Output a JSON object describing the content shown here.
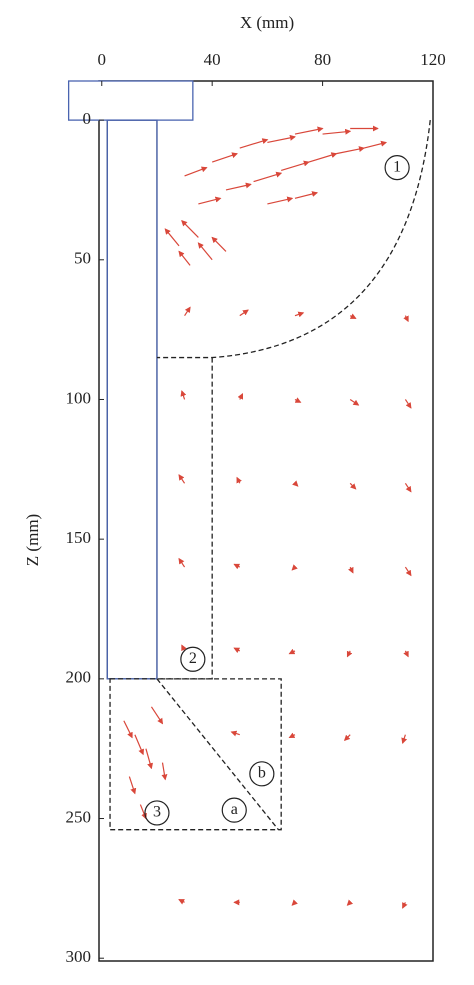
{
  "chart_data": {
    "type": "quiver",
    "xlabel": "X (mm)",
    "ylabel": "Z (mm)",
    "xlim": [
      -1,
      120
    ],
    "ylim": [
      -14,
      301
    ],
    "y_inverted": true,
    "xticks": [
      0,
      40,
      80,
      120
    ],
    "yticks": [
      0,
      50,
      100,
      150,
      200,
      250,
      300
    ],
    "color": "#d9473a",
    "annotations": [
      "1",
      "2",
      "3",
      "a",
      "b"
    ],
    "x": [
      30,
      40,
      50,
      60,
      70,
      80,
      90,
      45,
      55,
      65,
      75,
      85,
      95,
      35,
      60,
      70,
      28,
      35,
      40,
      32,
      45,
      8,
      12,
      16,
      10,
      18,
      22,
      14,
      30,
      50,
      70,
      90,
      110,
      30,
      50,
      70,
      90,
      110,
      30,
      50,
      70,
      90,
      110,
      30,
      50,
      70,
      90,
      110,
      30,
      50,
      70,
      90,
      110,
      50,
      70,
      90,
      110,
      30,
      50,
      70,
      90,
      110
    ],
    "z": [
      20,
      15,
      10,
      8,
      5,
      5,
      3,
      25,
      22,
      18,
      15,
      12,
      10,
      30,
      30,
      28,
      45,
      42,
      50,
      52,
      47,
      215,
      220,
      225,
      235,
      210,
      230,
      245,
      70,
      70,
      70,
      70,
      70,
      100,
      100,
      100,
      100,
      100,
      130,
      130,
      130,
      130,
      130,
      160,
      160,
      160,
      160,
      160,
      190,
      190,
      190,
      190,
      190,
      220,
      220,
      220,
      220,
      280,
      280,
      280,
      280,
      280
    ],
    "u": [
      8,
      9,
      10,
      10,
      10,
      10,
      10,
      9,
      10,
      10,
      10,
      10,
      8,
      8,
      9,
      8,
      -5,
      -6,
      -5,
      -4,
      -5,
      3,
      3,
      2,
      2,
      4,
      1,
      2,
      2,
      3,
      3,
      2,
      1,
      -1,
      1,
      2,
      3,
      2,
      -2,
      -1,
      1,
      2,
      2,
      -2,
      -2,
      -1,
      1,
      2,
      -1,
      -2,
      -2,
      -1,
      1,
      -3,
      -2,
      -2,
      -1,
      -2,
      -2,
      -1,
      -1,
      -1
    ],
    "w": [
      -3,
      -3,
      -3,
      -2,
      -2,
      -1,
      0,
      -2,
      -3,
      -3,
      -3,
      -2,
      -2,
      -2,
      -2,
      -2,
      -6,
      -6,
      -6,
      -5,
      -5,
      6,
      7,
      7,
      6,
      6,
      6,
      5,
      -3,
      -2,
      -1,
      1,
      2,
      -3,
      -2,
      1,
      2,
      3,
      -3,
      -2,
      1,
      2,
      3,
      -3,
      -1,
      1,
      2,
      3,
      -2,
      -1,
      1,
      2,
      2,
      -1,
      1,
      2,
      3,
      -1,
      0,
      1,
      1,
      2
    ]
  }
}
